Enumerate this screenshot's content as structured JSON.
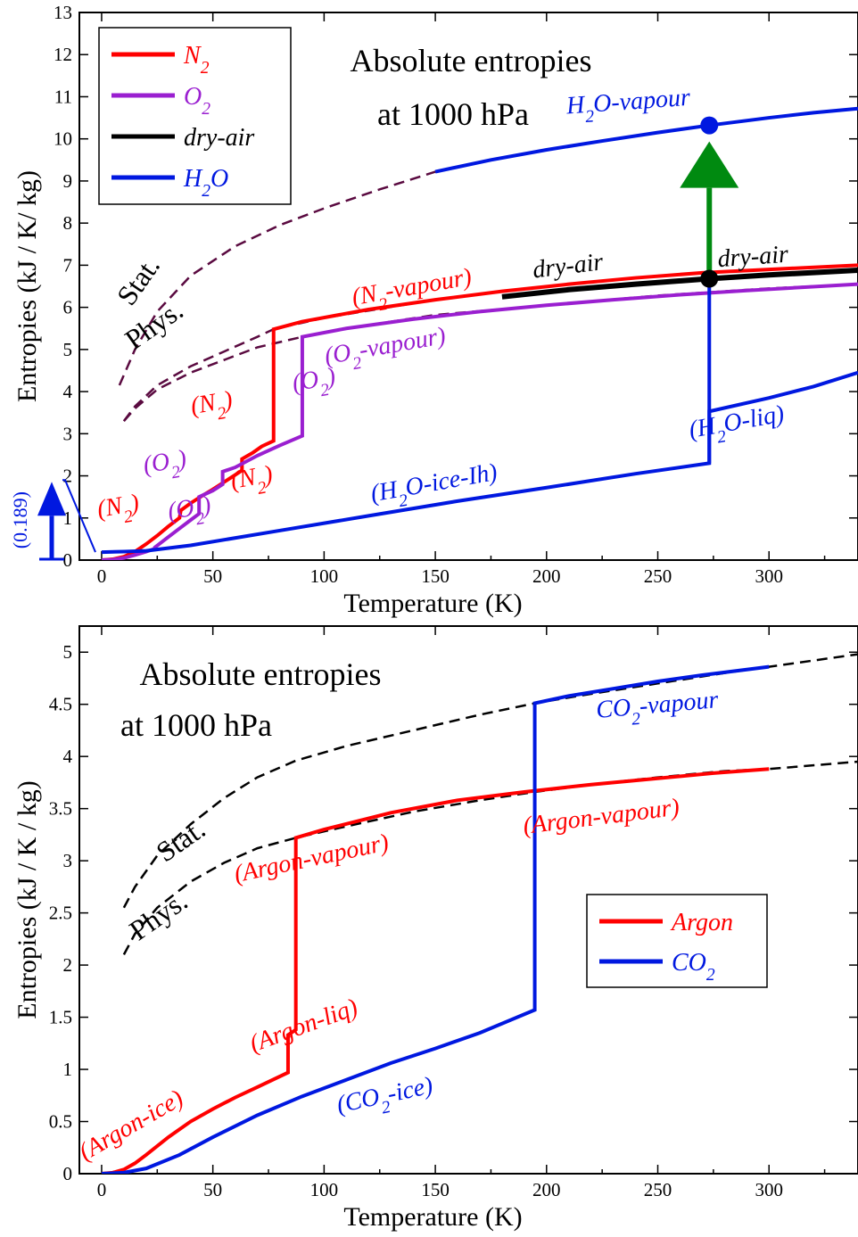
{
  "colors": {
    "n2": "#ff0000",
    "o2": "#9a1fd0",
    "dry_air": "#000000",
    "h2o": "#0018e0",
    "argon": "#ff0000",
    "co2": "#0018e0",
    "stat_top": "#5a0a40",
    "stat_bottom": "#000000",
    "arrow_green": "#008a10"
  },
  "chart_data": [
    {
      "type": "line",
      "title": "Absolute entropies",
      "subtitle": "at 1000 hPa",
      "xlabel": "Temperature (K)",
      "ylabel": "Entropies (kJ / K/ kg)",
      "xlim": [
        -10,
        340
      ],
      "ylim": [
        0,
        13
      ],
      "xticks": [
        0,
        50,
        100,
        150,
        200,
        250,
        300
      ],
      "yticks": [
        0,
        1,
        2,
        3,
        4,
        5,
        6,
        7,
        8,
        9,
        10,
        11,
        12,
        13
      ],
      "legend": {
        "position": "top-left",
        "entries": [
          {
            "label": "N",
            "sub": "2",
            "color_key": "n2"
          },
          {
            "label": "O",
            "sub": "2",
            "color_key": "o2"
          },
          {
            "label": "dry-air",
            "sub": "",
            "color_key": "dry_air"
          },
          {
            "label": "H",
            "sub": "2",
            "after": "O",
            "color_key": "h2o"
          }
        ]
      },
      "series": [
        {
          "id": "n2",
          "color_key": "n2",
          "x": [
            0,
            5,
            10,
            15,
            20,
            25,
            30,
            35,
            35.6,
            40,
            45,
            50,
            55,
            60,
            63.1,
            63.1,
            68,
            72,
            77.3,
            77.3,
            90,
            120,
            150,
            180,
            210,
            240,
            270,
            300,
            340
          ],
          "y": [
            0,
            0.02,
            0.08,
            0.2,
            0.38,
            0.58,
            0.8,
            1.0,
            1.18,
            1.35,
            1.52,
            1.68,
            1.85,
            2.02,
            2.13,
            2.4,
            2.55,
            2.7,
            2.83,
            5.48,
            5.66,
            5.95,
            6.18,
            6.38,
            6.55,
            6.7,
            6.82,
            6.9,
            7.0
          ]
        },
        {
          "id": "o2",
          "color_key": "o2",
          "x": [
            0,
            5,
            10,
            15,
            20,
            23.9,
            23.9,
            30,
            35,
            40,
            43.8,
            43.8,
            50,
            54.4,
            54.4,
            60,
            70,
            80,
            90.2,
            90.2,
            110,
            140,
            170,
            200,
            230,
            260,
            290,
            340
          ],
          "y": [
            0,
            0.01,
            0.05,
            0.12,
            0.2,
            0.27,
            0.3,
            0.55,
            0.75,
            0.95,
            1.1,
            1.5,
            1.65,
            1.8,
            2.1,
            2.2,
            2.48,
            2.72,
            2.95,
            5.3,
            5.5,
            5.72,
            5.9,
            6.05,
            6.18,
            6.3,
            6.4,
            6.55
          ]
        },
        {
          "id": "dry_air",
          "color_key": "dry_air",
          "x": [
            180,
            210,
            240,
            273.15,
            300,
            340
          ],
          "y": [
            6.25,
            6.42,
            6.55,
            6.68,
            6.77,
            6.88
          ]
        },
        {
          "id": "h2o",
          "color_key": "h2o",
          "x": [
            0,
            10,
            20,
            40,
            80,
            120,
            160,
            200,
            240,
            273.15,
            273.15,
            300,
            320,
            340
          ],
          "y": [
            0.189,
            0.2,
            0.22,
            0.35,
            0.7,
            1.05,
            1.4,
            1.72,
            2.05,
            2.3,
            3.53,
            3.85,
            4.12,
            4.45
          ]
        },
        {
          "id": "h2o_jump",
          "color_key": "h2o",
          "x": [
            273.15,
            273.15
          ],
          "y": [
            2.3,
            6.68
          ]
        },
        {
          "id": "h2o_vapour",
          "color_key": "h2o",
          "x": [
            150,
            175,
            200,
            225,
            250,
            273.15,
            300,
            320,
            340
          ],
          "y": [
            9.22,
            9.5,
            9.74,
            9.95,
            10.15,
            10.32,
            10.5,
            10.62,
            10.72
          ]
        }
      ],
      "dashed": [
        {
          "color_key": "stat_top",
          "x": [
            8,
            15,
            25,
            40,
            60,
            80,
            100,
            125,
            150,
            175,
            200,
            225,
            250,
            273,
            300,
            340
          ],
          "y": [
            4.15,
            5.0,
            5.9,
            6.75,
            7.45,
            7.95,
            8.35,
            8.8,
            9.22,
            9.5,
            9.74,
            9.95,
            10.15,
            10.32,
            10.5,
            10.72
          ]
        },
        {
          "color_key": "stat_top",
          "x": [
            10,
            15,
            25,
            40,
            55,
            70,
            77.3,
            100,
            150,
            200,
            250,
            300,
            340
          ],
          "y": [
            3.3,
            3.65,
            4.15,
            4.6,
            4.95,
            5.3,
            5.48,
            5.75,
            6.18,
            6.5,
            6.75,
            6.9,
            7.0
          ]
        },
        {
          "color_key": "stat_top",
          "x": [
            10,
            15,
            25,
            40,
            55,
            70,
            90.2,
            110,
            150,
            200,
            250,
            300,
            340
          ],
          "y": [
            3.3,
            3.6,
            4.05,
            4.45,
            4.75,
            5.05,
            5.3,
            5.5,
            5.82,
            6.05,
            6.28,
            6.45,
            6.55
          ]
        }
      ],
      "markers": [
        {
          "x": 273.15,
          "y": 10.32,
          "color_key": "h2o"
        },
        {
          "x": 273.15,
          "y": 6.68,
          "color_key": "dry_air"
        }
      ],
      "green_arrow": {
        "x": 273.15,
        "y_start": 6.68,
        "y_end": 10.32
      },
      "zero_point_arrow": {
        "value_label": "(0.189)",
        "y_value": 0.189,
        "x": -7,
        "y_top": 1.9
      },
      "annotations": [
        {
          "parts": [
            [
              "(N"
            ],
            [
              "2",
              "sub"
            ],
            [
              "-vapour)"
            ]
          ],
          "color_key": "n2",
          "x": 140,
          "y": 6.3,
          "rot": -10
        },
        {
          "parts": [
            [
              "(O"
            ],
            [
              "2",
              "sub"
            ],
            [
              "-vapour)"
            ]
          ],
          "color_key": "o2",
          "x": 128,
          "y": 4.9,
          "rot": -10
        },
        {
          "parts": [
            [
              "dry-air"
            ]
          ],
          "color_key": "dry_air",
          "x": 210,
          "y": 6.8,
          "rot": -7
        },
        {
          "parts": [
            [
              "dry-air"
            ]
          ],
          "color_key": "dry_air",
          "x": 293,
          "y": 7.02,
          "rot": -4
        },
        {
          "parts": [
            [
              "H"
            ],
            [
              "2",
              "sub"
            ],
            [
              "O-vapour"
            ]
          ],
          "color_key": "h2o",
          "x": 237,
          "y": 10.7,
          "rot": -4
        },
        {
          "parts": [
            [
              "(H"
            ],
            [
              "2",
              "sub"
            ],
            [
              "O-liq)"
            ]
          ],
          "color_key": "h2o",
          "x": 286,
          "y": 3.1,
          "rot": -10
        },
        {
          "parts": [
            [
              "(H"
            ],
            [
              "2",
              "sub"
            ],
            [
              "O-ice-Ih)"
            ]
          ],
          "color_key": "h2o",
          "x": 150,
          "y": 1.65,
          "rot": -10
        },
        {
          "parts": [
            [
              "(N"
            ],
            [
              "2",
              "sub"
            ],
            [
              ")"
            ]
          ],
          "color_key": "n2",
          "x": 50,
          "y": 3.55,
          "rot": -10
        },
        {
          "parts": [
            [
              "(O"
            ],
            [
              "2",
              "sub"
            ],
            [
              ")"
            ]
          ],
          "color_key": "o2",
          "x": 96,
          "y": 4.1,
          "rot": -10
        },
        {
          "parts": [
            [
              "(O"
            ],
            [
              "2",
              "sub"
            ],
            [
              ")"
            ]
          ],
          "color_key": "o2",
          "x": 29,
          "y": 2.15,
          "rot": -10
        },
        {
          "parts": [
            [
              "(N"
            ],
            [
              "2",
              "sub"
            ],
            [
              ")"
            ]
          ],
          "color_key": "n2",
          "x": 68,
          "y": 1.78,
          "rot": -10
        },
        {
          "parts": [
            [
              "(N"
            ],
            [
              "2",
              "sub"
            ],
            [
              ")"
            ]
          ],
          "color_key": "n2",
          "x": 8,
          "y": 1.1,
          "rot": -10
        },
        {
          "parts": [
            [
              "(O"
            ],
            [
              "2",
              "sub"
            ],
            [
              ")"
            ]
          ],
          "color_key": "o2",
          "x": 40,
          "y": 1.05,
          "rot": -10
        }
      ],
      "labels": [
        {
          "text": "Stat.",
          "x": 20,
          "y": 6.5,
          "rot": -55
        },
        {
          "text": "Phys.",
          "x": 26,
          "y": 5.4,
          "rot": -35
        }
      ]
    },
    {
      "type": "line",
      "title": "Absolute entropies",
      "subtitle": "at 1000 hPa",
      "xlabel": "Temperature (K)",
      "ylabel": "Entropies (kJ / K / kg)",
      "xlim": [
        -10,
        340
      ],
      "ylim": [
        0,
        5.25
      ],
      "xticks": [
        0,
        50,
        100,
        150,
        200,
        250,
        300
      ],
      "yticks": [
        0,
        0.5,
        1,
        1.5,
        2,
        2.5,
        3,
        3.5,
        4,
        4.5,
        5
      ],
      "ytick_labels": [
        "0",
        "0.5",
        "1",
        "1.5",
        "2",
        "2.5",
        "3",
        "3.5",
        "4",
        "4.5",
        "5"
      ],
      "legend": {
        "position": "bottom-right",
        "entries": [
          {
            "label": "Argon",
            "sub": "",
            "color_key": "argon"
          },
          {
            "label": "CO",
            "sub": "2",
            "color_key": "co2"
          }
        ]
      },
      "series": [
        {
          "id": "argon",
          "color_key": "argon",
          "x": [
            0,
            5,
            10,
            15,
            20,
            30,
            40,
            50,
            60,
            70,
            83.8,
            83.8,
            87.3,
            87.3,
            100,
            130,
            160,
            190,
            220,
            250,
            275,
            300
          ],
          "y": [
            0,
            0.01,
            0.04,
            0.1,
            0.18,
            0.35,
            0.5,
            0.62,
            0.73,
            0.83,
            0.97,
            1.33,
            1.38,
            3.22,
            3.3,
            3.46,
            3.58,
            3.66,
            3.73,
            3.79,
            3.84,
            3.88
          ]
        },
        {
          "id": "co2",
          "color_key": "co2",
          "x": [
            0,
            10,
            20,
            35,
            50,
            70,
            90,
            110,
            130,
            150,
            170,
            194.7,
            194.7,
            210,
            230,
            250,
            270,
            300
          ],
          "y": [
            0,
            0.01,
            0.05,
            0.18,
            0.35,
            0.56,
            0.74,
            0.9,
            1.06,
            1.2,
            1.35,
            1.57,
            4.51,
            4.58,
            4.65,
            4.72,
            4.78,
            4.86
          ]
        }
      ],
      "dashed": [
        {
          "color_key": "stat_bottom",
          "x": [
            10,
            15,
            25,
            40,
            55,
            70,
            87.3,
            110,
            140,
            170,
            194.7,
            220,
            250,
            280,
            300,
            340
          ],
          "y": [
            2.55,
            2.75,
            3.05,
            3.35,
            3.6,
            3.8,
            3.96,
            4.1,
            4.25,
            4.4,
            4.51,
            4.6,
            4.7,
            4.8,
            4.86,
            4.98
          ]
        },
        {
          "color_key": "stat_bottom",
          "x": [
            10,
            15,
            25,
            40,
            55,
            70,
            87.3,
            110,
            140,
            170,
            194.7,
            220,
            250,
            280,
            300,
            340
          ],
          "y": [
            2.1,
            2.3,
            2.55,
            2.8,
            2.98,
            3.12,
            3.22,
            3.33,
            3.47,
            3.58,
            3.66,
            3.73,
            3.8,
            3.86,
            3.88,
            3.95
          ]
        }
      ],
      "annotations": [
        {
          "parts": [
            [
              "CO"
            ],
            [
              "2",
              "sub"
            ],
            [
              "-vapour"
            ]
          ],
          "color_key": "co2",
          "x": 250,
          "y": 4.42,
          "rot": -5
        },
        {
          "parts": [
            [
              "(Argon-vapour)"
            ]
          ],
          "color_key": "argon",
          "x": 225,
          "y": 3.35,
          "rot": -7
        },
        {
          "parts": [
            [
              "(Argon-vapour)"
            ]
          ],
          "color_key": "argon",
          "x": 95,
          "y": 2.95,
          "rot": -12
        },
        {
          "parts": [
            [
              "(Argon-liq)"
            ]
          ],
          "color_key": "argon",
          "x": 92,
          "y": 1.35,
          "rot": -20
        },
        {
          "parts": [
            [
              "(Argon-ice)"
            ]
          ],
          "color_key": "argon",
          "x": 15,
          "y": 0.4,
          "rot": -30
        },
        {
          "parts": [
            [
              "(CO"
            ],
            [
              "2",
              "sub"
            ],
            [
              "-ice)"
            ]
          ],
          "color_key": "co2",
          "x": 128,
          "y": 0.68,
          "rot": -12
        }
      ],
      "labels": [
        {
          "text": "Stat.",
          "x": 38,
          "y": 3.12,
          "rot": -35
        },
        {
          "text": "Phys.",
          "x": 28,
          "y": 2.4,
          "rot": -35
        }
      ]
    }
  ]
}
